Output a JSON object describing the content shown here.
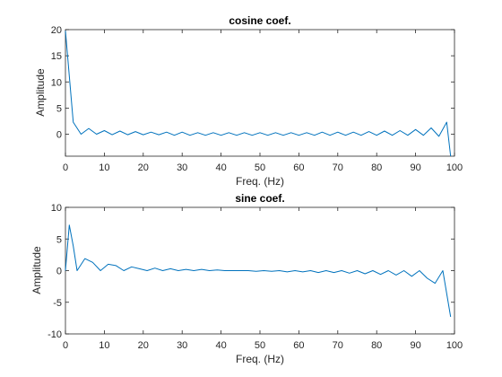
{
  "chart_data": [
    {
      "type": "line",
      "title": "cosine coef.",
      "xlabel": "Freq. (Hz)",
      "ylabel": "Amplitude",
      "xlim": [
        0,
        100
      ],
      "ylim": [
        -4.2,
        20
      ],
      "xticks": [
        0,
        10,
        20,
        30,
        40,
        50,
        60,
        70,
        80,
        90,
        100
      ],
      "yticks": [
        0,
        5,
        10,
        15,
        20
      ],
      "grid": false,
      "color": "#0072BD",
      "x": [
        0,
        2,
        4,
        6,
        8,
        10,
        12,
        14,
        16,
        18,
        20,
        22,
        24,
        26,
        28,
        30,
        32,
        34,
        36,
        38,
        40,
        42,
        44,
        46,
        48,
        50,
        52,
        54,
        56,
        58,
        60,
        62,
        64,
        66,
        68,
        70,
        72,
        74,
        76,
        78,
        80,
        82,
        84,
        86,
        88,
        90,
        92,
        94,
        96,
        98,
        99
      ],
      "y": [
        19.8,
        2.3,
        0.0,
        1.1,
        0.0,
        0.7,
        -0.1,
        0.6,
        -0.1,
        0.5,
        -0.1,
        0.4,
        -0.1,
        0.4,
        -0.2,
        0.4,
        -0.2,
        0.3,
        -0.2,
        0.3,
        -0.2,
        0.3,
        -0.2,
        0.3,
        -0.2,
        0.3,
        -0.2,
        0.3,
        -0.2,
        0.3,
        -0.2,
        0.3,
        -0.2,
        0.4,
        -0.2,
        0.4,
        -0.2,
        0.4,
        -0.2,
        0.5,
        -0.2,
        0.6,
        -0.2,
        0.7,
        -0.2,
        0.9,
        -0.2,
        1.2,
        -0.4,
        2.3,
        -4.2
      ]
    },
    {
      "type": "line",
      "title": "sine coef.",
      "xlabel": "Freq. (Hz)",
      "ylabel": "Amplitude",
      "xlim": [
        0,
        100
      ],
      "ylim": [
        -10,
        10
      ],
      "xticks": [
        0,
        10,
        20,
        30,
        40,
        50,
        60,
        70,
        80,
        90,
        100
      ],
      "yticks": [
        -10,
        -5,
        0,
        5,
        10
      ],
      "grid": false,
      "color": "#0072BD",
      "x": [
        0,
        1,
        2,
        3,
        5,
        7,
        9,
        11,
        13,
        15,
        17,
        19,
        21,
        23,
        25,
        27,
        29,
        31,
        33,
        35,
        37,
        39,
        41,
        43,
        45,
        47,
        49,
        51,
        53,
        55,
        57,
        59,
        61,
        63,
        65,
        67,
        69,
        71,
        73,
        75,
        77,
        79,
        81,
        83,
        85,
        87,
        89,
        91,
        93,
        95,
        97,
        99
      ],
      "y": [
        0,
        7.2,
        3.9,
        0.0,
        1.9,
        1.3,
        0.0,
        1.0,
        0.8,
        0.0,
        0.6,
        0.3,
        0.0,
        0.4,
        0.0,
        0.3,
        0.0,
        0.2,
        0.0,
        0.2,
        0.0,
        0.1,
        0.0,
        0.0,
        0.0,
        0.0,
        -0.1,
        0.0,
        -0.1,
        0.0,
        -0.2,
        0.0,
        -0.2,
        0.0,
        -0.3,
        0.0,
        -0.3,
        0.0,
        -0.4,
        0.0,
        -0.5,
        0.0,
        -0.6,
        0.0,
        -0.7,
        0.0,
        -0.9,
        0.0,
        -1.2,
        -2.0,
        0.0,
        -7.3
      ]
    }
  ]
}
